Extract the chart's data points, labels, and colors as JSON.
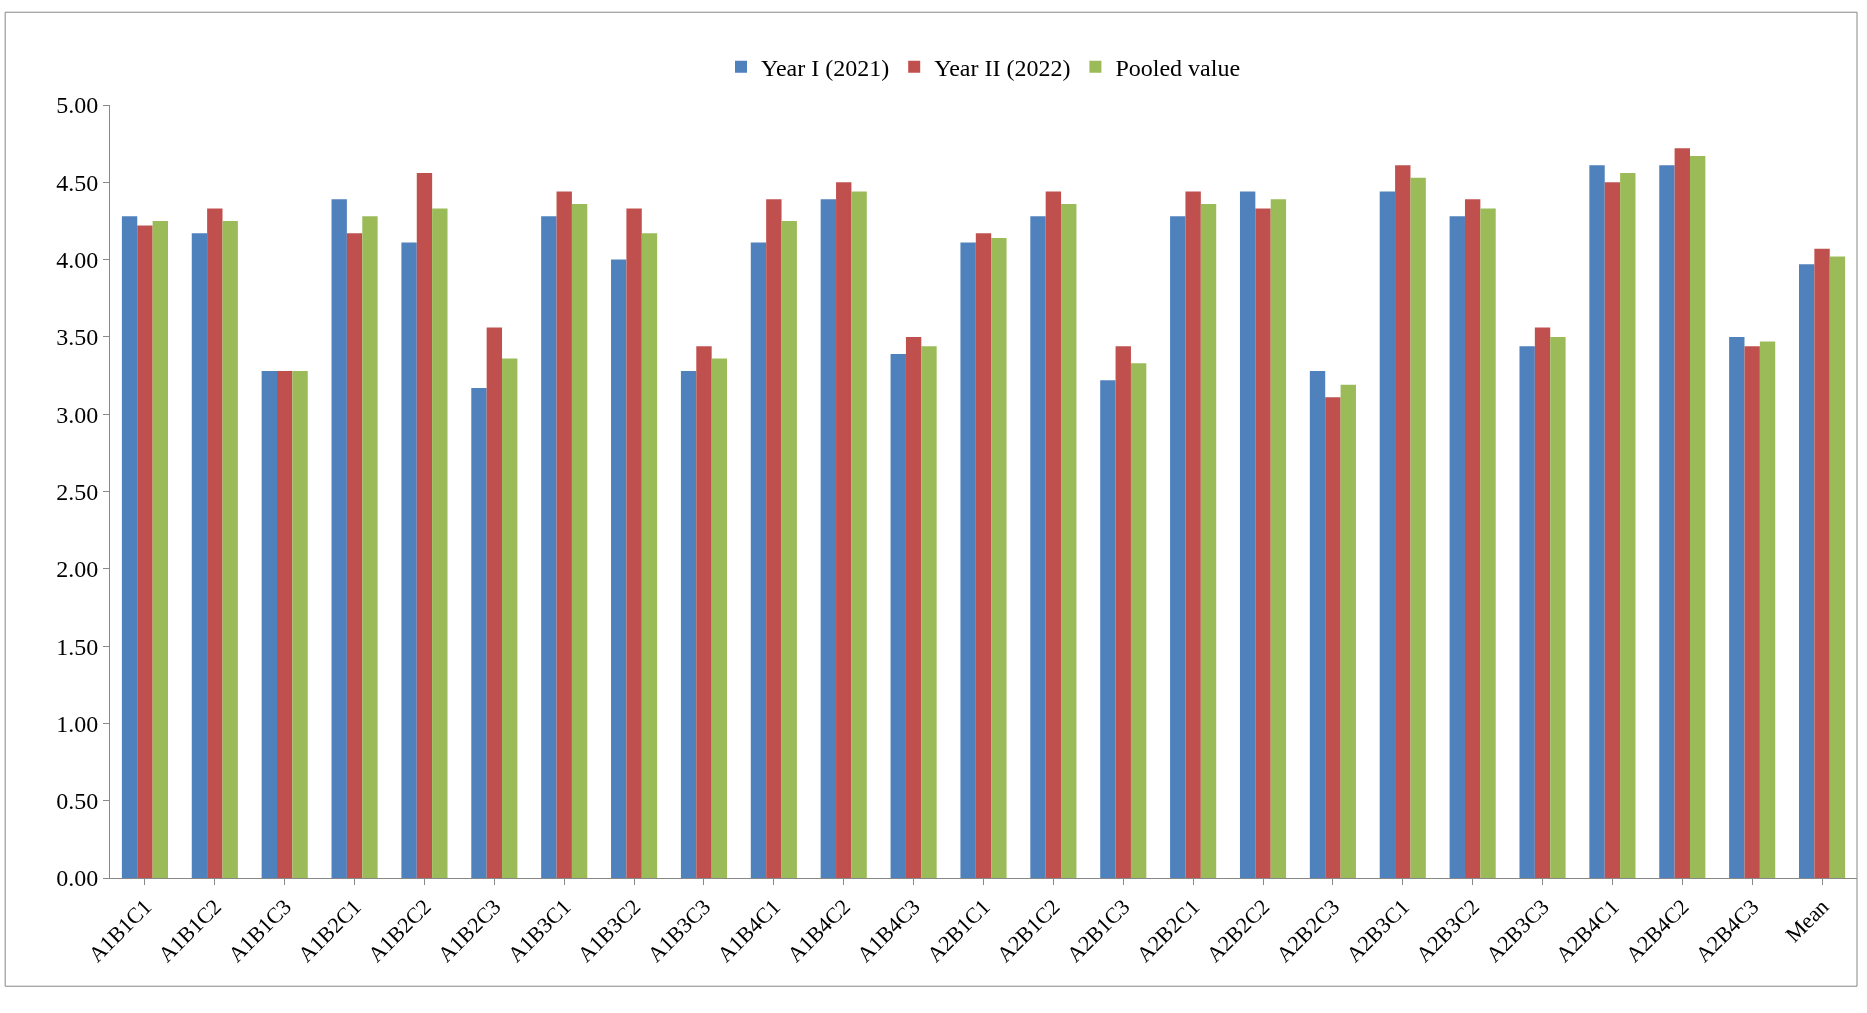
{
  "chart_data": {
    "type": "bar",
    "categories": [
      "A1B1C1",
      "A1B1C2",
      "A1B1C3",
      "A1B2C1",
      "A1B2C2",
      "A1B2C3",
      "A1B3C1",
      "A1B3C2",
      "A1B3C3",
      "A1B4C1",
      "A1B4C2",
      "A1B4C3",
      "A2B1C1",
      "A2B1C2",
      "A2B1C3",
      "A2B2C1",
      "A2B2C2",
      "A2B2C3",
      "A2B3C1",
      "A2B3C2",
      "A2B3C3",
      "A2B4C1",
      "A2B4C2",
      "A2B4C3",
      "Mean"
    ],
    "series": [
      {
        "name": "Year I (2021)",
        "color": "#4f81bd",
        "values": [
          4.28,
          4.17,
          3.28,
          4.39,
          4.11,
          3.17,
          4.28,
          4.0,
          3.28,
          4.11,
          4.39,
          3.39,
          4.11,
          4.28,
          3.22,
          4.28,
          4.44,
          3.28,
          4.44,
          4.28,
          3.44,
          4.61,
          4.61,
          3.5,
          3.97
        ]
      },
      {
        "name": "Year II (2022)",
        "color": "#c0504d",
        "values": [
          4.22,
          4.33,
          3.28,
          4.17,
          4.56,
          3.56,
          4.44,
          4.33,
          3.44,
          4.39,
          4.5,
          3.5,
          4.17,
          4.44,
          3.44,
          4.44,
          4.33,
          3.11,
          4.61,
          4.39,
          3.56,
          4.5,
          4.72,
          3.44,
          4.07
        ]
      },
      {
        "name": "Pooled value",
        "color": "#9bbb59",
        "values": [
          4.25,
          4.25,
          3.28,
          4.28,
          4.33,
          3.36,
          4.36,
          4.17,
          3.36,
          4.25,
          4.44,
          3.44,
          4.14,
          4.36,
          3.33,
          4.36,
          4.39,
          3.19,
          4.53,
          4.33,
          3.5,
          4.56,
          4.67,
          3.47,
          4.02
        ]
      }
    ],
    "ylim": [
      0,
      5
    ],
    "yticks": [
      {
        "value": 0,
        "label": "0.00"
      },
      {
        "value": 0.5,
        "label": "0.50"
      },
      {
        "value": 1,
        "label": "1.00"
      },
      {
        "value": 1.5,
        "label": "1.50"
      },
      {
        "value": 2,
        "label": "2.00"
      },
      {
        "value": 2.5,
        "label": "2.50"
      },
      {
        "value": 3,
        "label": "3.00"
      },
      {
        "value": 3.5,
        "label": "3.50"
      },
      {
        "value": 4,
        "label": "4.00"
      },
      {
        "value": 4.5,
        "label": "4.50"
      },
      {
        "value": 5,
        "label": "5.00"
      }
    ],
    "grid": false,
    "legend": "top"
  }
}
